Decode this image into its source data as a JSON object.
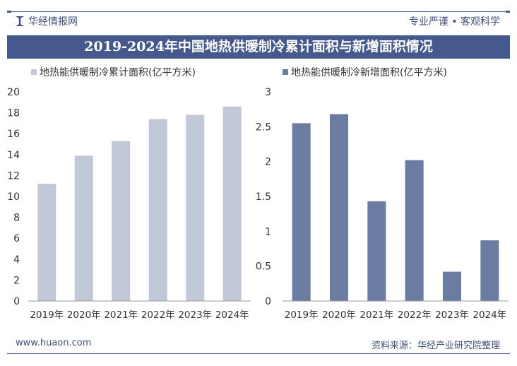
{
  "header": {
    "brand": "华经情报网",
    "slogan": "专业严谨 • 客观科学",
    "title": "2019-2024年中国地热供暖制冷累计面积与新增面积情况"
  },
  "footer": {
    "url": "www.huaon.com",
    "source": "资料来源：华经产业研究院整理"
  },
  "chart_data": [
    {
      "type": "bar",
      "categories": [
        "2019年",
        "2020年",
        "2021年",
        "2022年",
        "2023年",
        "2024年"
      ],
      "series": [
        {
          "name": "地热能供暖制冷累计面积(亿平方米)",
          "values": [
            11.2,
            13.9,
            15.3,
            17.4,
            17.8,
            18.6
          ],
          "color": "#c1c8d8"
        }
      ],
      "ylim": [
        0,
        20
      ],
      "yticks": [
        "0",
        "2",
        "4",
        "6",
        "8",
        "10",
        "12",
        "14",
        "16",
        "18",
        "20"
      ],
      "grid": false,
      "legend": "top"
    },
    {
      "type": "bar",
      "categories": [
        "2019年",
        "2020年",
        "2021年",
        "2022年",
        "2023年",
        "2024年"
      ],
      "series": [
        {
          "name": "地热能供暖制冷新增面积(亿平方米)",
          "values": [
            2.55,
            2.68,
            1.43,
            2.02,
            0.42,
            0.87
          ],
          "color": "#6b7ca3"
        }
      ],
      "ylim": [
        0,
        3
      ],
      "yticks": [
        "0",
        "0.5",
        "1",
        "1.5",
        "2",
        "2.5",
        "3"
      ],
      "grid": false,
      "legend": "top"
    }
  ]
}
